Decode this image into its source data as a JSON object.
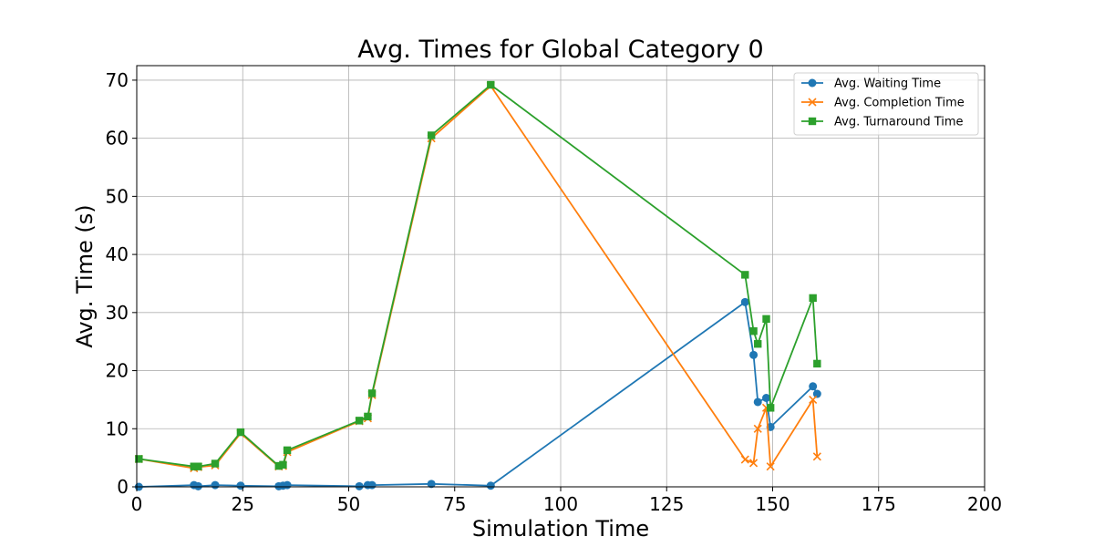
{
  "chart_data": {
    "type": "line",
    "title": "Avg. Times for Global Category 0",
    "xlabel": "Simulation Time",
    "ylabel": "Avg. Time (s)",
    "xlim": [
      0,
      200
    ],
    "ylim": [
      0,
      72.5
    ],
    "xticks": [
      0,
      25,
      50,
      75,
      100,
      125,
      150,
      175,
      200
    ],
    "yticks": [
      0,
      10,
      20,
      30,
      40,
      50,
      60,
      70
    ],
    "grid": true,
    "legend_position": "top-right",
    "series": [
      {
        "name": "Avg. Waiting Time",
        "color": "#1f77b4",
        "marker": "circle",
        "x": [
          0.5,
          13.5,
          14.5,
          18.5,
          24.5,
          33.5,
          34.5,
          35.5,
          52.5,
          54.5,
          55.5,
          69.5,
          83.5,
          143.5,
          145.5,
          146.5,
          148.5,
          149.5,
          159.5,
          160.5
        ],
        "y": [
          0.0,
          0.3,
          0.1,
          0.3,
          0.2,
          0.1,
          0.2,
          0.3,
          0.1,
          0.3,
          0.3,
          0.5,
          0.2,
          31.8,
          22.7,
          14.6,
          15.3,
          10.3,
          17.3,
          16.0
        ]
      },
      {
        "name": "Avg. Completion Time",
        "color": "#ff7f0e",
        "marker": "x",
        "x": [
          0.5,
          13.5,
          14.5,
          18.5,
          24.5,
          33.5,
          34.5,
          35.5,
          52.5,
          54.5,
          55.5,
          69.5,
          83.5,
          143.5,
          145.5,
          146.5,
          148.5,
          149.5,
          159.5,
          160.5
        ],
        "y": [
          4.8,
          3.2,
          3.4,
          3.7,
          9.2,
          3.5,
          3.6,
          6.0,
          11.3,
          11.8,
          15.8,
          60.0,
          69.0,
          4.7,
          4.1,
          10.0,
          13.6,
          3.5,
          15.0,
          5.2
        ]
      },
      {
        "name": "Avg. Turnaround Time",
        "color": "#2ca02c",
        "marker": "square",
        "x": [
          0.5,
          13.5,
          14.5,
          18.5,
          24.5,
          33.5,
          34.5,
          35.5,
          52.5,
          54.5,
          55.5,
          69.5,
          83.5,
          143.5,
          145.5,
          146.5,
          148.5,
          149.5,
          159.5,
          160.5
        ],
        "y": [
          4.8,
          3.5,
          3.5,
          4.0,
          9.4,
          3.6,
          3.8,
          6.3,
          11.4,
          12.1,
          16.1,
          60.5,
          69.2,
          36.5,
          26.8,
          24.6,
          28.9,
          13.6,
          32.5,
          21.2
        ]
      }
    ]
  }
}
